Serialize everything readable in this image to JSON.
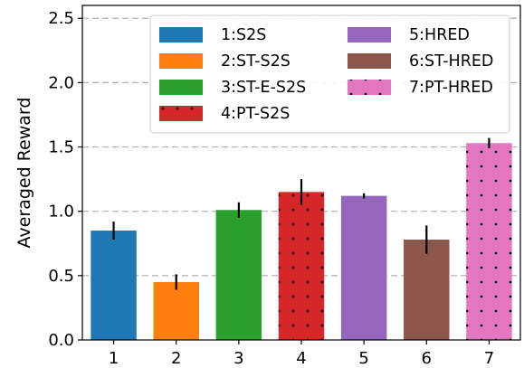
{
  "chart_data": {
    "type": "bar",
    "title": "",
    "xlabel": "",
    "ylabel": "Averaged Reward",
    "categories": [
      "1",
      "2",
      "3",
      "4",
      "5",
      "6",
      "7"
    ],
    "values": [
      0.85,
      0.45,
      1.01,
      1.15,
      1.12,
      0.78,
      1.53
    ],
    "errors": [
      0.07,
      0.06,
      0.06,
      0.1,
      0.02,
      0.11,
      0.04
    ],
    "series_names": [
      "1:S2S",
      "2:ST-S2S",
      "3:ST-E-S2S",
      "4:PT-S2S",
      "5:HRED",
      "6:ST-HRED",
      "7:PT-HRED"
    ],
    "colors": [
      "#1f77b4",
      "#ff7f0e",
      "#2ca02c",
      "#d62728",
      "#9467bd",
      "#8c564b",
      "#e377c2"
    ],
    "dotted": [
      false,
      false,
      false,
      true,
      false,
      false,
      true
    ],
    "ylim": [
      0,
      2.6
    ],
    "yticks": [
      "0.0",
      "0.5",
      "1.0",
      "1.5",
      "2.0",
      "2.5"
    ],
    "ytick_values": [
      0,
      0.5,
      1.0,
      1.5,
      2.0,
      2.5
    ],
    "grid": "horizontal-dashed",
    "legend_position": "top-center"
  }
}
